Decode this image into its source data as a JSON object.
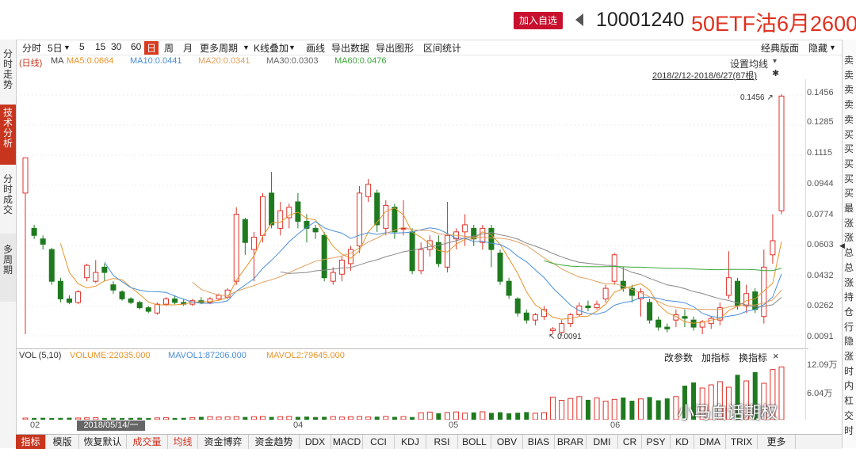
{
  "header": {
    "add_label": "加入自选",
    "code": "10001240",
    "name": "50ETF沽6月2600"
  },
  "sidebar": {
    "tabs": [
      "分时走势",
      "技术分析",
      "分时成交",
      "多周期"
    ]
  },
  "toolbar": {
    "items": [
      "分时",
      "5日",
      "5",
      "15",
      "30",
      "60",
      "日",
      "周",
      "月",
      "更多周期",
      "K线叠加",
      "画线",
      "导出数据",
      "导出图形",
      "区间统计"
    ],
    "right": [
      "经典版面",
      "隐藏"
    ]
  },
  "legend": {
    "period": "(日线)",
    "ma": "MA",
    "ma5": "MA5:0.0664",
    "ma10": "MA10:0.0441",
    "ma20": "MA20:0.0341",
    "ma30": "MA30:0.0303",
    "ma60": "MA60:0.0476"
  },
  "settings": {
    "label": "设置均线",
    "range": "2018/2/12-2018/6/27(87根)"
  },
  "price_axis": [
    "0.1456",
    "0.1285",
    "0.1115",
    "0.0944",
    "0.0774",
    "0.0603",
    "0.0432",
    "0.0262",
    "0.0091"
  ],
  "annotations": {
    "high": "0.1456",
    "low": "0.0091"
  },
  "volume": {
    "title": "VOL (5,10)",
    "value": "VOLUME:22035.000",
    "mavol1": "MAVOL1:87206.000",
    "mavol2": "MAVOL2:79645.000",
    "actions": [
      "改参数",
      "加指标",
      "换指标"
    ],
    "axis_top": "12.09万",
    "axis_mid": "6.04万"
  },
  "dates": {
    "hover": "2018/05/14/一",
    "d1": "02",
    "d2": "04",
    "d3": "05",
    "d4": "06"
  },
  "tabs": [
    "指标",
    "模版",
    "恢复默认",
    "成交量",
    "均线",
    "资金博弈",
    "资金趋势",
    "DDX",
    "MACD",
    "CCI",
    "KDJ",
    "RSI",
    "BOLL",
    "OBV",
    "BIAS",
    "BRAR",
    "DMI",
    "CR",
    "PSY",
    "KD",
    "DMA",
    "TRIX",
    "更多"
  ],
  "right_panel": [
    "卖",
    "卖",
    "卖",
    "卖",
    "卖",
    "买",
    "买",
    "买",
    "买",
    "买",
    "最",
    "涨",
    "涨",
    "总",
    "总",
    "涨",
    "持",
    "仓",
    "行",
    "隐",
    "涨",
    "时",
    "内",
    "杠",
    "交",
    "时"
  ],
  "watermark": "小马白话期权",
  "colors": {
    "up": "#e0322a",
    "down": "#1f7a1f",
    "ma5": "#e8942a",
    "ma10": "#4a8fd8",
    "ma20": "#e0a060",
    "ma30": "#888888",
    "ma60": "#3aa83a"
  }
}
